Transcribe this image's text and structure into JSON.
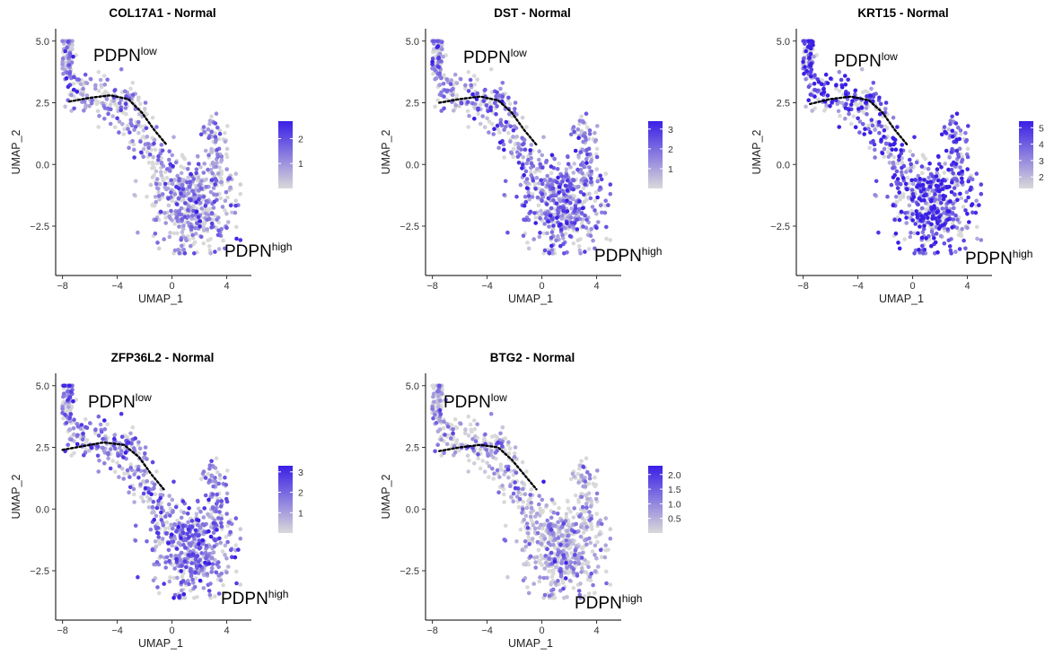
{
  "chart_data": [
    {
      "type": "scatter",
      "title": "COL17A1 - Normal",
      "xlabel": "UMAP_1",
      "ylabel": "UMAP_2",
      "xlim": [
        -8.5,
        5.8
      ],
      "ylim": [
        -4.5,
        5.5
      ],
      "xticks": [
        -8,
        -4,
        0,
        4
      ],
      "yticks": [
        5.0,
        2.5,
        0.0,
        -2.5
      ],
      "xtick_labels": [
        "−8",
        "−4",
        "0",
        "4"
      ],
      "ytick_labels": [
        "5.0",
        "2.5",
        "0.0",
        "−2.5"
      ],
      "legend": {
        "placement": "right",
        "ticks": [
          "2",
          "1"
        ],
        "tick_values": [
          2,
          1
        ],
        "max": 2.7,
        "colors": [
          "#d9d9d9",
          "#3a1fe6"
        ]
      },
      "annotations": [
        {
          "base": "PDPN",
          "sup": "low"
        },
        {
          "base": "PDPN",
          "sup": "high"
        }
      ],
      "trajectory": [
        [
          -7.5,
          2.55
        ],
        [
          -6,
          2.7
        ],
        [
          -4.5,
          2.8
        ],
        [
          -3.2,
          2.65
        ],
        [
          -2.2,
          2.1
        ],
        [
          -1.3,
          1.4
        ],
        [
          -0.4,
          0.8
        ]
      ],
      "mean_expression": 0.9
    },
    {
      "type": "scatter",
      "title": "DST - Normal",
      "xlabel": "UMAP_1",
      "ylabel": "UMAP_2",
      "xlim": [
        -8.5,
        5.8
      ],
      "ylim": [
        -4.5,
        5.5
      ],
      "xticks": [
        -8,
        -4,
        0,
        4
      ],
      "yticks": [
        5.0,
        2.5,
        0.0,
        -2.5
      ],
      "xtick_labels": [
        "−8",
        "−4",
        "0",
        "4"
      ],
      "ytick_labels": [
        "5.0",
        "2.5",
        "0.0",
        "−2.5"
      ],
      "legend": {
        "placement": "right",
        "ticks": [
          "3",
          "2",
          "1"
        ],
        "tick_values": [
          3,
          2,
          1
        ],
        "max": 3.4,
        "colors": [
          "#d9d9d9",
          "#3a1fe6"
        ]
      },
      "annotations": [
        {
          "base": "PDPN",
          "sup": "low"
        },
        {
          "base": "PDPN",
          "sup": "high"
        }
      ],
      "trajectory": [
        [
          -7.5,
          2.5
        ],
        [
          -6,
          2.65
        ],
        [
          -4.5,
          2.75
        ],
        [
          -3.2,
          2.6
        ],
        [
          -2.2,
          2.1
        ],
        [
          -1.3,
          1.4
        ],
        [
          -0.4,
          0.8
        ]
      ],
      "mean_expression": 1.6
    },
    {
      "type": "scatter",
      "title": "KRT15 - Normal",
      "xlabel": "UMAP_1",
      "ylabel": "UMAP_2",
      "xlim": [
        -8.5,
        5.8
      ],
      "ylim": [
        -4.5,
        5.5
      ],
      "xticks": [
        -8,
        -4,
        0,
        4
      ],
      "yticks": [
        5.0,
        2.5,
        0.0,
        -2.5
      ],
      "xtick_labels": [
        "−8",
        "−4",
        "0",
        "4"
      ],
      "ytick_labels": [
        "5.0",
        "2.5",
        "0.0",
        "−2.5"
      ],
      "legend": {
        "placement": "right",
        "ticks": [
          "5",
          "4",
          "3",
          "2"
        ],
        "tick_values": [
          5,
          4,
          3,
          2
        ],
        "max": 5.4,
        "min": 1.3,
        "colors": [
          "#d9d9d9",
          "#3a1fe6"
        ]
      },
      "annotations": [
        {
          "base": "PDPN",
          "sup": "low"
        },
        {
          "base": "PDPN",
          "sup": "high"
        }
      ],
      "trajectory": [
        [
          -7.5,
          2.45
        ],
        [
          -6,
          2.65
        ],
        [
          -4.5,
          2.75
        ],
        [
          -3.2,
          2.6
        ],
        [
          -2.2,
          2.1
        ],
        [
          -1.3,
          1.4
        ],
        [
          -0.4,
          0.8
        ]
      ],
      "mean_expression": 4.2
    },
    {
      "type": "scatter",
      "title": "ZFP36L2 - Normal",
      "xlabel": "UMAP_1",
      "ylabel": "UMAP_2",
      "xlim": [
        -8.5,
        5.8
      ],
      "ylim": [
        -4.5,
        5.5
      ],
      "xticks": [
        -8,
        -4,
        0,
        4
      ],
      "yticks": [
        5.0,
        2.5,
        0.0,
        -2.5
      ],
      "xtick_labels": [
        "−8",
        "−4",
        "0",
        "4"
      ],
      "ytick_labels": [
        "5.0",
        "2.5",
        "0.0",
        "−2.5"
      ],
      "legend": {
        "placement": "right",
        "ticks": [
          "3",
          "2",
          "1"
        ],
        "tick_values": [
          3,
          2,
          1
        ],
        "max": 3.3,
        "colors": [
          "#d9d9d9",
          "#3a1fe6"
        ]
      },
      "annotations": [
        {
          "base": "PDPN",
          "sup": "low"
        },
        {
          "base": "PDPN",
          "sup": "high"
        }
      ],
      "trajectory": [
        [
          -8,
          2.4
        ],
        [
          -6.5,
          2.55
        ],
        [
          -5,
          2.7
        ],
        [
          -3.5,
          2.6
        ],
        [
          -2.4,
          2.1
        ],
        [
          -1.5,
          1.4
        ],
        [
          -0.6,
          0.8
        ]
      ],
      "mean_expression": 1.6
    },
    {
      "type": "scatter",
      "title": "BTG2 - Normal",
      "xlabel": "UMAP_1",
      "ylabel": "UMAP_2",
      "xlim": [
        -8.5,
        5.8
      ],
      "ylim": [
        -4.5,
        5.5
      ],
      "xticks": [
        -8,
        -4,
        0,
        4
      ],
      "yticks": [
        5.0,
        2.5,
        0.0,
        -2.5
      ],
      "xtick_labels": [
        "−8",
        "−4",
        "0",
        "4"
      ],
      "ytick_labels": [
        "5.0",
        "2.5",
        "0.0",
        "−2.5"
      ],
      "legend": {
        "placement": "right",
        "ticks": [
          "2.0",
          "1.5",
          "1.0",
          "0.5"
        ],
        "tick_values": [
          2.0,
          1.5,
          1.0,
          0.5
        ],
        "max": 2.3,
        "colors": [
          "#d9d9d9",
          "#3a1fe6"
        ]
      },
      "annotations": [
        {
          "base": "PDPN",
          "sup": "low"
        },
        {
          "base": "PDPN",
          "sup": "high"
        }
      ],
      "trajectory": [
        [
          -7.5,
          2.35
        ],
        [
          -6,
          2.5
        ],
        [
          -4.5,
          2.6
        ],
        [
          -3.2,
          2.5
        ],
        [
          -2.2,
          2.0
        ],
        [
          -1.3,
          1.4
        ],
        [
          -0.4,
          0.8
        ]
      ],
      "mean_expression": 0.5
    }
  ]
}
